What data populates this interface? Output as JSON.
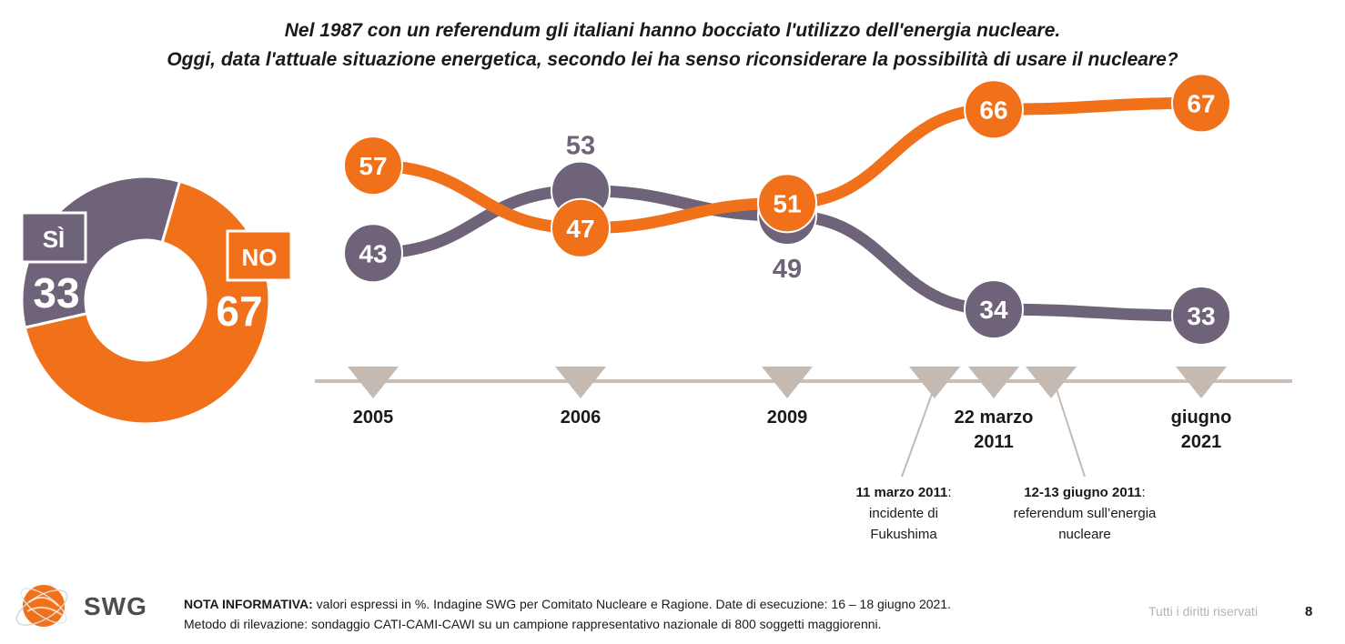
{
  "title": {
    "line1": "Nel 1987 con un referendum gli italiani hanno bocciato l'utilizzo dell'energia nucleare.",
    "line2": "Oggi, data l'attuale situazione energetica, secondo lei ha senso riconsiderare la possibilità di usare il nucleare?"
  },
  "colors": {
    "no": "#f07119",
    "si": "#6e6378",
    "axis": "#c9bfb8",
    "text": "#1a1a1a"
  },
  "chart_data": [
    {
      "type": "pie",
      "variant": "donut",
      "labels": [
        "SÌ",
        "NO"
      ],
      "values": [
        33,
        67
      ],
      "value_labels": [
        "33",
        "67"
      ],
      "colors": [
        "#6e6378",
        "#f07119"
      ]
    },
    {
      "type": "line",
      "categories": [
        "2005",
        "2006",
        "2009",
        "22 marzo 2011",
        "giugno 2021"
      ],
      "category_lines": [
        [
          "2005"
        ],
        [
          "2006"
        ],
        [
          "2009"
        ],
        [
          "22 marzo",
          "2011"
        ],
        [
          "giugno",
          "2021"
        ]
      ],
      "series": [
        {
          "key": "no",
          "values": [
            57,
            47,
            51,
            66,
            67
          ],
          "color": "#f07119"
        },
        {
          "key": "si",
          "values": [
            43,
            53,
            49,
            34,
            33
          ],
          "color": "#6e6378"
        }
      ],
      "annotations": [
        {
          "bold": "11 marzo 2011",
          "rest": ":",
          "lines": [
            "incidente di",
            "Fukushima"
          ]
        },
        {
          "bold": "12-13 giugno 2011",
          "rest": ":",
          "lines": [
            "referendum sull’energia",
            "nucleare"
          ]
        }
      ],
      "grid": false
    }
  ],
  "footer": {
    "note_label": "NOTA INFORMATIVA:",
    "note_text": " valori espressi in %. Indagine SWG per Comitato Nucleare e Ragione. Date di esecuzione: 16 – 18 giugno 2021.",
    "method_text": "Metodo di rilevazione: sondaggio CATI-CAMI-CAWI su un campione rappresentativo nazionale di 800 soggetti maggiorenni.",
    "rights": "Tutti i diritti riservati",
    "page": "8",
    "logo_text": "SWG"
  }
}
